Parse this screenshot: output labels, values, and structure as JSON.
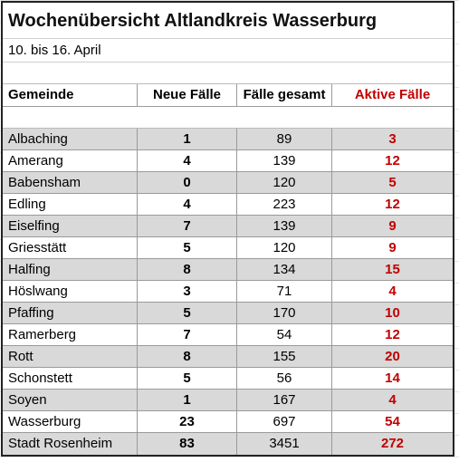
{
  "title": "Wochenübersicht Altlandkreis Wasserburg",
  "subtitle": "10. bis 16. April",
  "table": {
    "header": [
      "Gemeinde",
      "Neue Fälle",
      "Fälle gesamt",
      "Aktive Fälle"
    ],
    "rows": [
      [
        "Albaching",
        1,
        89,
        3
      ],
      [
        "Amerang",
        4,
        139,
        12
      ],
      [
        "Babensham",
        0,
        120,
        5
      ],
      [
        "Edling",
        4,
        223,
        12
      ],
      [
        "Eiselfing",
        7,
        139,
        9
      ],
      [
        "Griesstätt",
        5,
        120,
        9
      ],
      [
        "Halfing",
        8,
        134,
        15
      ],
      [
        "Höslwang",
        3,
        71,
        4
      ],
      [
        "Pfaffing",
        5,
        170,
        10
      ],
      [
        "Ramerberg",
        7,
        54,
        12
      ],
      [
        "Rott",
        8,
        155,
        20
      ],
      [
        "Schonstett",
        5,
        56,
        14
      ],
      [
        "Soyen",
        1,
        167,
        4
      ],
      [
        "Wasserburg",
        23,
        697,
        54
      ],
      [
        "Stadt Rosenheim",
        83,
        3451,
        272
      ]
    ]
  }
}
